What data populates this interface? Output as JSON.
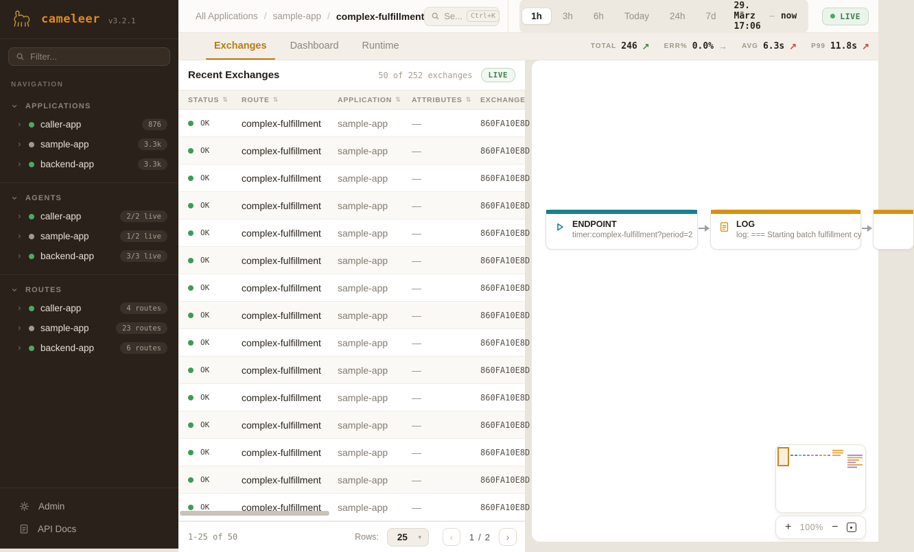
{
  "app": {
    "name": "cameleer",
    "version": "v3.2.1"
  },
  "sidebar": {
    "filter": {
      "placeholder": "Filter..."
    },
    "nav_label": "NAVIGATION",
    "sections": [
      {
        "label": "APPLICATIONS",
        "items": [
          {
            "name": "caller-app",
            "dot": "green",
            "badge": "876"
          },
          {
            "name": "sample-app",
            "dot": "gray",
            "badge": "3.3k"
          },
          {
            "name": "backend-app",
            "dot": "green",
            "badge": "3.3k"
          }
        ]
      },
      {
        "label": "AGENTS",
        "items": [
          {
            "name": "caller-app",
            "dot": "green",
            "badge": "2/2 live"
          },
          {
            "name": "sample-app",
            "dot": "gray",
            "badge": "1/2 live"
          },
          {
            "name": "backend-app",
            "dot": "green",
            "badge": "3/3 live"
          }
        ]
      },
      {
        "label": "ROUTES",
        "items": [
          {
            "name": "caller-app",
            "dot": "green",
            "badge": "4 routes"
          },
          {
            "name": "sample-app",
            "dot": "gray",
            "badge": "23 routes"
          },
          {
            "name": "backend-app",
            "dot": "green",
            "badge": "6 routes"
          }
        ]
      }
    ],
    "footer": [
      {
        "label": "Admin",
        "icon": "gear-icon"
      },
      {
        "label": "API Docs",
        "icon": "document-icon"
      }
    ]
  },
  "header": {
    "breadcrumb": [
      {
        "label": "All Applications"
      },
      {
        "label": "sample-app"
      },
      {
        "label": "complex-fulfillment"
      }
    ],
    "breadcrumb_separator": "/",
    "search": {
      "placeholder": "Se...",
      "shortcut": "Ctrl+K"
    },
    "time_ranges": [
      "1h",
      "3h",
      "6h",
      "Today",
      "24h",
      "7d"
    ],
    "active_range": "1h",
    "date_from": "29. März 17:06",
    "date_separator": "—",
    "date_to": "now",
    "live_label": "LIVE"
  },
  "tabs": {
    "items": [
      "Exchanges",
      "Dashboard",
      "Runtime"
    ],
    "active": "Exchanges"
  },
  "stats": [
    {
      "label": "TOTAL",
      "value": "246",
      "trend": "up",
      "trend_color": "#3E8E50"
    },
    {
      "label": "ERR%",
      "value": "0.0%",
      "trend": "flat",
      "trend_color": "#A1978A"
    },
    {
      "label": "AVG",
      "value": "6.3s",
      "trend": "up",
      "trend_color": "#C05048"
    },
    {
      "label": "P99",
      "value": "11.8s",
      "trend": "up",
      "trend_color": "#C05048"
    }
  ],
  "exchanges": {
    "title": "Recent Exchanges",
    "count_text": "50 of 252 exchanges",
    "live_label": "LIVE",
    "columns": [
      "STATUS",
      "ROUTE",
      "APPLICATION",
      "ATTRIBUTES",
      "EXCHANGE"
    ],
    "rows": [
      {
        "status": "OK",
        "route": "complex-fulfillment",
        "application": "sample-app",
        "attributes": "—",
        "exchange_id": "860FA10E8D"
      },
      {
        "status": "OK",
        "route": "complex-fulfillment",
        "application": "sample-app",
        "attributes": "—",
        "exchange_id": "860FA10E8D"
      },
      {
        "status": "OK",
        "route": "complex-fulfillment",
        "application": "sample-app",
        "attributes": "—",
        "exchange_id": "860FA10E8D"
      },
      {
        "status": "OK",
        "route": "complex-fulfillment",
        "application": "sample-app",
        "attributes": "—",
        "exchange_id": "860FA10E8D"
      },
      {
        "status": "OK",
        "route": "complex-fulfillment",
        "application": "sample-app",
        "attributes": "—",
        "exchange_id": "860FA10E8D"
      },
      {
        "status": "OK",
        "route": "complex-fulfillment",
        "application": "sample-app",
        "attributes": "—",
        "exchange_id": "860FA10E8D"
      },
      {
        "status": "OK",
        "route": "complex-fulfillment",
        "application": "sample-app",
        "attributes": "—",
        "exchange_id": "860FA10E8D"
      },
      {
        "status": "OK",
        "route": "complex-fulfillment",
        "application": "sample-app",
        "attributes": "—",
        "exchange_id": "860FA10E8D"
      },
      {
        "status": "OK",
        "route": "complex-fulfillment",
        "application": "sample-app",
        "attributes": "—",
        "exchange_id": "860FA10E8D"
      },
      {
        "status": "OK",
        "route": "complex-fulfillment",
        "application": "sample-app",
        "attributes": "—",
        "exchange_id": "860FA10E8D"
      },
      {
        "status": "OK",
        "route": "complex-fulfillment",
        "application": "sample-app",
        "attributes": "—",
        "exchange_id": "860FA10E8D"
      },
      {
        "status": "OK",
        "route": "complex-fulfillment",
        "application": "sample-app",
        "attributes": "—",
        "exchange_id": "860FA10E8D"
      },
      {
        "status": "OK",
        "route": "complex-fulfillment",
        "application": "sample-app",
        "attributes": "—",
        "exchange_id": "860FA10E8D"
      },
      {
        "status": "OK",
        "route": "complex-fulfillment",
        "application": "sample-app",
        "attributes": "—",
        "exchange_id": "860FA10E8D"
      },
      {
        "status": "OK",
        "route": "complex-fulfillment",
        "application": "sample-app",
        "attributes": "—",
        "exchange_id": "860FA10E8D"
      }
    ],
    "footer": {
      "range_text": "1-25 of 50",
      "rows_label": "Rows:",
      "rows_per_page": "25",
      "select_caret": "▾",
      "prev_icon": "‹",
      "next_icon": "›",
      "page_current": "1",
      "page_separator": "/",
      "page_total": "2"
    }
  },
  "flow": {
    "nodes": [
      {
        "title": "ENDPOINT",
        "subtitle": "timer:complex-fulfillment?period=2",
        "accent": "#17808D",
        "icon": "play-icon"
      },
      {
        "title": "LOG",
        "subtitle": "log: === Starting batch fulfillment cy",
        "accent": "#D6920E",
        "icon": "document-icon"
      },
      {
        "title": "",
        "subtitle": "",
        "accent": "#D6920E",
        "icon": ""
      }
    ],
    "zoom_controls": {
      "zoom_in": "+",
      "level": "100%",
      "zoom_out": "−"
    }
  }
}
